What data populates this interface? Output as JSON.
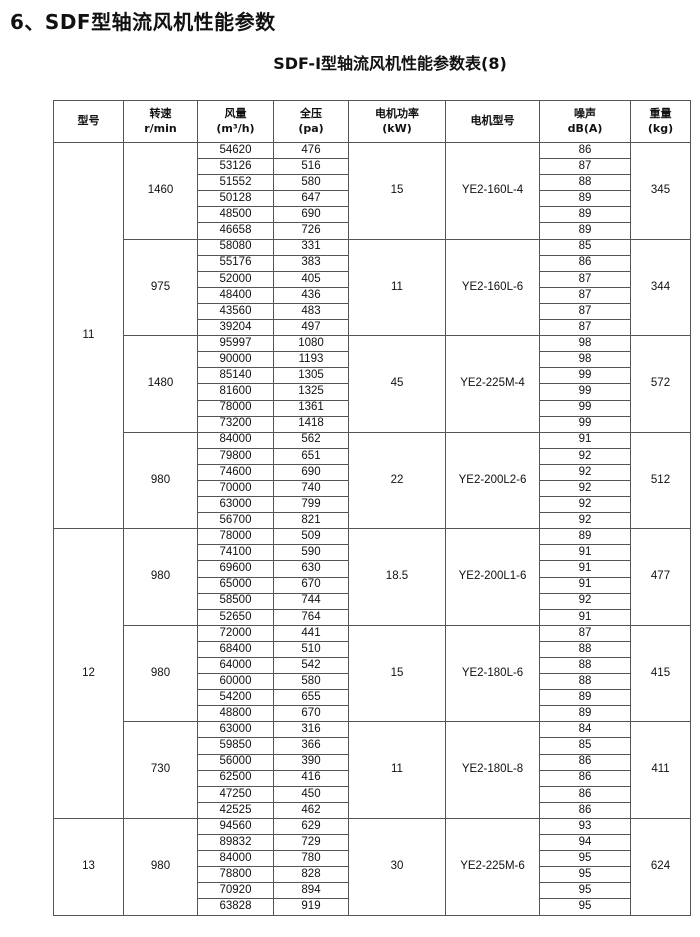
{
  "page_title": "6、SDF型轴流风机性能参数",
  "table_title": "SDF-Ⅰ型轴流风机性能参数表(8)",
  "headers": [
    {
      "line1": "型号",
      "line2": ""
    },
    {
      "line1": "转速",
      "line2": "r/min"
    },
    {
      "line1": "风量",
      "line2": "(m³/h)"
    },
    {
      "line1": "全压",
      "line2": "(pa)"
    },
    {
      "line1": "电机功率",
      "line2": "(kW)"
    },
    {
      "line1": "电机型号",
      "line2": ""
    },
    {
      "line1": "噪声",
      "line2": "dB(A)"
    },
    {
      "line1": "重量",
      "line2": "(kg)"
    }
  ],
  "models": [
    {
      "model": "11",
      "groups": [
        {
          "speed": "1460",
          "power": "15",
          "motor": "YE2-160L-4",
          "weight": "345",
          "rows": [
            [
              "54620",
              "476",
              "86"
            ],
            [
              "53126",
              "516",
              "87"
            ],
            [
              "51552",
              "580",
              "88"
            ],
            [
              "50128",
              "647",
              "89"
            ],
            [
              "48500",
              "690",
              "89"
            ],
            [
              "46658",
              "726",
              "89"
            ]
          ]
        },
        {
          "speed": "975",
          "power": "11",
          "motor": "YE2-160L-6",
          "weight": "344",
          "rows": [
            [
              "58080",
              "331",
              "85"
            ],
            [
              "55176",
              "383",
              "86"
            ],
            [
              "52000",
              "405",
              "87"
            ],
            [
              "48400",
              "436",
              "87"
            ],
            [
              "43560",
              "483",
              "87"
            ],
            [
              "39204",
              "497",
              "87"
            ]
          ]
        },
        {
          "speed": "1480",
          "power": "45",
          "motor": "YE2-225M-4",
          "weight": "572",
          "rows": [
            [
              "95997",
              "1080",
              "98"
            ],
            [
              "90000",
              "1193",
              "98"
            ],
            [
              "85140",
              "1305",
              "99"
            ],
            [
              "81600",
              "1325",
              "99"
            ],
            [
              "78000",
              "1361",
              "99"
            ],
            [
              "73200",
              "1418",
              "99"
            ]
          ]
        },
        {
          "speed": "980",
          "power": "22",
          "motor": "YE2-200L2-6",
          "weight": "512",
          "rows": [
            [
              "84000",
              "562",
              "91"
            ],
            [
              "79800",
              "651",
              "92"
            ],
            [
              "74600",
              "690",
              "92"
            ],
            [
              "70000",
              "740",
              "92"
            ],
            [
              "63000",
              "799",
              "92"
            ],
            [
              "56700",
              "821",
              "92"
            ]
          ]
        }
      ]
    },
    {
      "model": "12",
      "groups": [
        {
          "speed": "980",
          "power": "18.5",
          "motor": "YE2-200L1-6",
          "weight": "477",
          "rows": [
            [
              "78000",
              "509",
              "89"
            ],
            [
              "74100",
              "590",
              "91"
            ],
            [
              "69600",
              "630",
              "91"
            ],
            [
              "65000",
              "670",
              "91"
            ],
            [
              "58500",
              "744",
              "92"
            ],
            [
              "52650",
              "764",
              "91"
            ]
          ]
        },
        {
          "speed": "980",
          "power": "15",
          "motor": "YE2-180L-6",
          "weight": "415",
          "rows": [
            [
              "72000",
              "441",
              "87"
            ],
            [
              "68400",
              "510",
              "88"
            ],
            [
              "64000",
              "542",
              "88"
            ],
            [
              "60000",
              "580",
              "88"
            ],
            [
              "54200",
              "655",
              "89"
            ],
            [
              "48800",
              "670",
              "89"
            ]
          ]
        },
        {
          "speed": "730",
          "power": "11",
          "motor": "YE2-180L-8",
          "weight": "411",
          "rows": [
            [
              "63000",
              "316",
              "84"
            ],
            [
              "59850",
              "366",
              "85"
            ],
            [
              "56000",
              "390",
              "86"
            ],
            [
              "62500",
              "416",
              "86"
            ],
            [
              "47250",
              "450",
              "86"
            ],
            [
              "42525",
              "462",
              "86"
            ]
          ]
        }
      ]
    },
    {
      "model": "13",
      "groups": [
        {
          "speed": "980",
          "power": "30",
          "motor": "YE2-225M-6",
          "weight": "624",
          "rows": [
            [
              "94560",
              "629",
              "93"
            ],
            [
              "89832",
              "729",
              "94"
            ],
            [
              "84000",
              "780",
              "95"
            ],
            [
              "78800",
              "828",
              "95"
            ],
            [
              "70920",
              "894",
              "95"
            ],
            [
              "63828",
              "919",
              "95"
            ]
          ]
        }
      ]
    }
  ]
}
